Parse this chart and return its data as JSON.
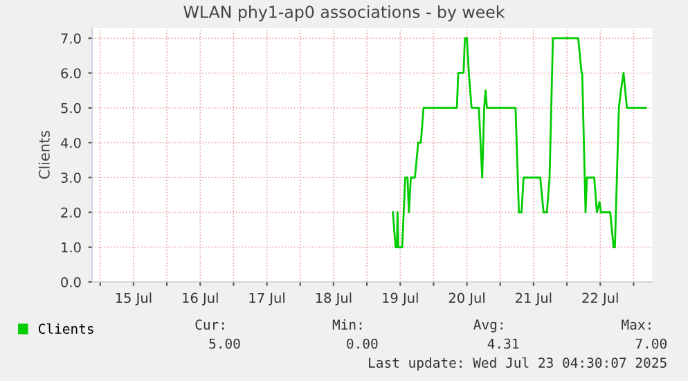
{
  "chart_data": {
    "type": "line",
    "title": "WLAN phy1-ap0 associations - by week",
    "ylabel": "Clients",
    "x": [
      "2025-07-19T09:22",
      "2025-07-19T10:19",
      "2025-07-19T10:48",
      "2025-07-19T11:02",
      "2025-07-19T11:17",
      "2025-07-19T12:00",
      "2025-07-19T12:43",
      "2025-07-19T13:48",
      "2025-07-19T14:38",
      "2025-07-19T15:07",
      "2025-07-19T15:50",
      "2025-07-19T17:17",
      "2025-07-19T18:29",
      "2025-07-19T19:26",
      "2025-07-19T20:24",
      "2025-07-20T08:24",
      "2025-07-20T08:53",
      "2025-07-20T10:48",
      "2025-07-20T11:17",
      "2025-07-20T12:00",
      "2025-07-20T12:43",
      "2025-07-20T13:41",
      "2025-07-20T16:19",
      "2025-07-20T17:31",
      "2025-07-20T18:14",
      "2025-07-20T18:43",
      "2025-07-20T19:12",
      "2025-07-21T05:31",
      "2025-07-21T06:43",
      "2025-07-21T07:41",
      "2025-07-21T08:24",
      "2025-07-21T14:24",
      "2025-07-21T15:36",
      "2025-07-21T16:48",
      "2025-07-21T17:46",
      "2025-07-21T18:58",
      "2025-07-22T04:05",
      "2025-07-22T05:17",
      "2025-07-22T05:31",
      "2025-07-22T06:43",
      "2025-07-22T07:12",
      "2025-07-22T09:50",
      "2025-07-22T10:48",
      "2025-07-22T11:46",
      "2025-07-22T12:14",
      "2025-07-22T15:36",
      "2025-07-22T16:48",
      "2025-07-22T17:17",
      "2025-07-22T18:43",
      "2025-07-22T19:26",
      "2025-07-22T20:24",
      "2025-07-22T21:36",
      "2025-07-23T04:30"
    ],
    "ylim": [
      0,
      7.3
    ],
    "xlim": [
      "2025-07-14T21:07",
      "2025-07-23T06:43"
    ],
    "yticks": [
      {
        "value": 0,
        "label": "0.0"
      },
      {
        "value": 1,
        "label": "1.0"
      },
      {
        "value": 2,
        "label": "2.0"
      },
      {
        "value": 3,
        "label": "3.0"
      },
      {
        "value": 4,
        "label": "4.0"
      },
      {
        "value": 5,
        "label": "5.0"
      },
      {
        "value": 6,
        "label": "6.0"
      },
      {
        "value": 7,
        "label": "7.0"
      }
    ],
    "xticks": [
      {
        "value": "2025-07-15",
        "label": null
      },
      {
        "value": "2025-07-15T12:00",
        "label": "15 Jul"
      },
      {
        "value": "2025-07-16",
        "label": null
      },
      {
        "value": "2025-07-16T12:00",
        "label": "16 Jul"
      },
      {
        "value": "2025-07-17",
        "label": null
      },
      {
        "value": "2025-07-17T12:00",
        "label": "17 Jul"
      },
      {
        "value": "2025-07-18",
        "label": null
      },
      {
        "value": "2025-07-18T12:00",
        "label": "18 Jul"
      },
      {
        "value": "2025-07-19",
        "label": null
      },
      {
        "value": "2025-07-19T12:00",
        "label": "19 Jul"
      },
      {
        "value": "2025-07-20",
        "label": null
      },
      {
        "value": "2025-07-20T12:00",
        "label": "20 Jul"
      },
      {
        "value": "2025-07-21",
        "label": null
      },
      {
        "value": "2025-07-21T12:00",
        "label": "21 Jul"
      },
      {
        "value": "2025-07-22",
        "label": null
      },
      {
        "value": "2025-07-22T12:00",
        "label": "22 Jul"
      },
      {
        "value": "2025-07-23",
        "label": null
      }
    ],
    "series": [
      {
        "name": "Clients",
        "color": "#00cc00",
        "values": [
          2,
          1,
          1,
          2,
          1,
          1,
          1,
          3,
          3,
          2,
          3,
          3,
          4,
          4,
          5,
          5,
          6,
          6,
          7,
          7,
          6,
          5,
          5,
          3,
          5,
          5.5,
          5,
          5,
          2,
          2,
          3,
          3,
          2,
          2,
          3,
          7,
          7,
          6,
          6,
          2,
          3,
          3,
          2,
          2.3,
          2,
          2,
          1,
          1,
          5,
          5.5,
          6,
          5,
          5
        ]
      }
    ],
    "grid": true,
    "legend": "bottom left",
    "line_style": "solid",
    "marker": "none",
    "annotations": [
      "Cur:",
      "Min:",
      "Avg:",
      "Max:",
      "5.00",
      "0.00",
      "4.31",
      "7.00",
      "Last update: Wed Jul 23 04:30:07 2025"
    ]
  }
}
